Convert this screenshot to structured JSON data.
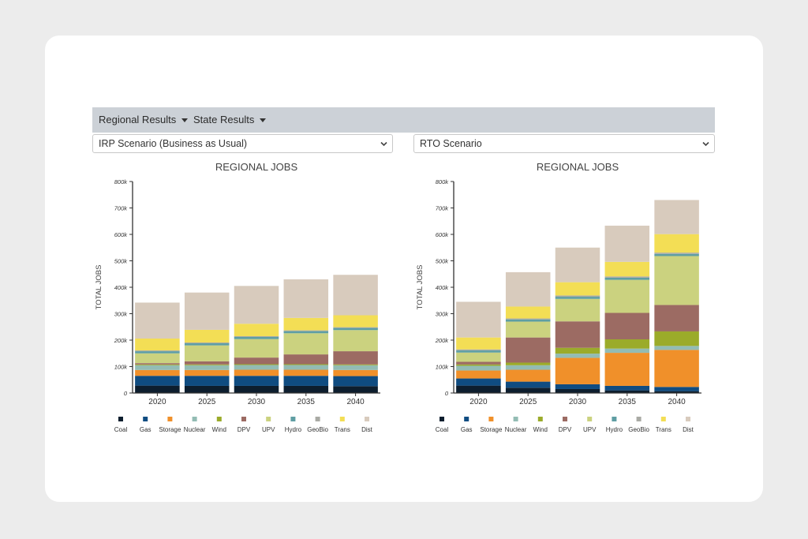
{
  "nav": {
    "regional_label": "Regional Results",
    "state_label": "State Results"
  },
  "left_panel": {
    "selected_scenario": "IRP Scenario (Business as Usual)"
  },
  "right_panel": {
    "selected_scenario": "RTO Scenario"
  },
  "colors": {
    "Coal": "#0d1e2e",
    "Gas": "#0f4c81",
    "Storage": "#f0902a",
    "Nuclear": "#93bcb4",
    "Wind": "#9bab2a",
    "DPV": "#9c6b63",
    "UPV": "#cbd27f",
    "Hydro": "#5f9ea3",
    "GeoBio": "#a9aaa4",
    "Trans": "#f3de55",
    "Dist": "#d8cbbd"
  },
  "chart_data": [
    {
      "type": "bar",
      "stacked": true,
      "title": "REGIONAL JOBS",
      "xlabel": "",
      "ylabel": "TOTAL JOBS",
      "ylim": [
        0,
        800000
      ],
      "yticks": [
        "0",
        "100k",
        "200k",
        "300k",
        "400k",
        "500k",
        "600k",
        "700k",
        "800k"
      ],
      "categories": [
        "2020",
        "2025",
        "2030",
        "2035",
        "2040"
      ],
      "legend": "bottom",
      "series": [
        {
          "name": "Coal",
          "values": [
            28000,
            27000,
            27000,
            27000,
            26000
          ]
        },
        {
          "name": "Gas",
          "values": [
            37000,
            38000,
            38000,
            38000,
            38000
          ]
        },
        {
          "name": "Storage",
          "values": [
            22000,
            22000,
            23000,
            23000,
            23000
          ]
        },
        {
          "name": "Nuclear",
          "values": [
            18000,
            18000,
            18000,
            18000,
            18000
          ]
        },
        {
          "name": "Wind",
          "values": [
            3000,
            3000,
            3000,
            3000,
            3000
          ]
        },
        {
          "name": "DPV",
          "values": [
            5000,
            12000,
            25000,
            37000,
            50000
          ]
        },
        {
          "name": "UPV",
          "values": [
            37000,
            60000,
            70000,
            80000,
            80000
          ]
        },
        {
          "name": "Hydro",
          "values": [
            8000,
            8000,
            8000,
            8000,
            8000
          ]
        },
        {
          "name": "GeoBio",
          "values": [
            3000,
            3000,
            3000,
            3000,
            3000
          ]
        },
        {
          "name": "Trans",
          "values": [
            45000,
            48000,
            47000,
            47000,
            45000
          ]
        },
        {
          "name": "Dist",
          "values": [
            136000,
            141000,
            143000,
            146000,
            153000
          ]
        }
      ]
    },
    {
      "type": "bar",
      "stacked": true,
      "title": "REGIONAL JOBS",
      "xlabel": "",
      "ylabel": "TOTAL JOBS",
      "ylim": [
        0,
        800000
      ],
      "yticks": [
        "0",
        "100k",
        "200k",
        "300k",
        "400k",
        "500k",
        "600k",
        "700k",
        "800k"
      ],
      "categories": [
        "2020",
        "2025",
        "2030",
        "2035",
        "2040"
      ],
      "legend": "bottom",
      "series": [
        {
          "name": "Coal",
          "values": [
            28000,
            20000,
            15000,
            10000,
            7000
          ]
        },
        {
          "name": "Gas",
          "values": [
            27000,
            23000,
            18000,
            17000,
            16000
          ]
        },
        {
          "name": "Storage",
          "values": [
            30000,
            45000,
            100000,
            125000,
            140000
          ]
        },
        {
          "name": "Nuclear",
          "values": [
            18000,
            17000,
            16000,
            16000,
            15000
          ]
        },
        {
          "name": "Wind",
          "values": [
            5000,
            10000,
            22000,
            35000,
            55000
          ]
        },
        {
          "name": "DPV",
          "values": [
            10000,
            95000,
            100000,
            100000,
            100000
          ]
        },
        {
          "name": "UPV",
          "values": [
            35000,
            60000,
            85000,
            125000,
            185000
          ]
        },
        {
          "name": "Hydro",
          "values": [
            8000,
            8000,
            8000,
            8000,
            8000
          ]
        },
        {
          "name": "GeoBio",
          "values": [
            4000,
            4000,
            5000,
            5000,
            5000
          ]
        },
        {
          "name": "Trans",
          "values": [
            45000,
            45000,
            50000,
            55000,
            70000
          ]
        },
        {
          "name": "Dist",
          "values": [
            135000,
            130000,
            131000,
            137000,
            129000
          ]
        }
      ]
    }
  ]
}
